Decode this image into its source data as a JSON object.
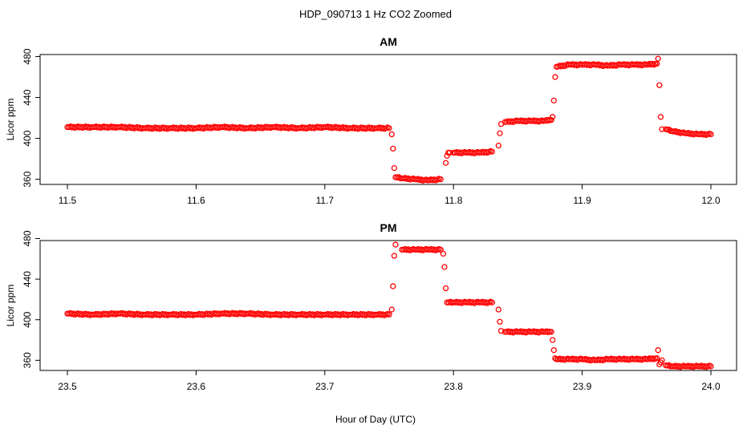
{
  "figure_title": "HDP_090713  1 Hz CO2 Zoomed",
  "xlabel": "Hour of Day (UTC)",
  "chart_data": [
    {
      "type": "scatter",
      "title": "AM",
      "xlabel": "",
      "ylabel": "Licor ppm",
      "xlim": [
        11.5,
        12.0
      ],
      "ylim": [
        355,
        482
      ],
      "xticks": [
        "11.5",
        "11.6",
        "11.7",
        "11.8",
        "11.9",
        "12.0"
      ],
      "yticks": [
        "360",
        "400",
        "440",
        "480"
      ],
      "grid": false,
      "color": "#ff0000",
      "marker": "open-circle",
      "series": [
        {
          "x": [
            11.5,
            11.52,
            11.54,
            11.56,
            11.58,
            11.6,
            11.62,
            11.64,
            11.66,
            11.68,
            11.7,
            11.72,
            11.74,
            11.75,
            11.752,
            11.753,
            11.754,
            11.755,
            11.76,
            11.77,
            11.78,
            11.79,
            11.794,
            11.795,
            11.796,
            11.797,
            11.8,
            11.81,
            11.82,
            11.83,
            11.835,
            11.836,
            11.837,
            11.84,
            11.85,
            11.86,
            11.87,
            11.876,
            11.877,
            11.878,
            11.879,
            11.88,
            11.89,
            11.9,
            11.91,
            11.92,
            11.93,
            11.94,
            11.95,
            11.958,
            11.959,
            11.96,
            11.961,
            11.962,
            11.965,
            11.97,
            11.98,
            11.99,
            12.0
          ],
          "y": [
            411,
            411,
            411,
            410,
            410,
            410,
            411,
            410,
            411,
            410,
            411,
            410,
            410,
            410,
            404,
            390,
            371,
            362,
            361,
            360,
            359,
            360,
            376,
            383,
            386,
            386,
            386,
            386,
            386,
            387,
            393,
            405,
            414,
            416,
            417,
            417,
            417,
            418,
            421,
            437,
            460,
            470,
            472,
            472,
            472,
            471,
            472,
            472,
            472,
            473,
            478,
            452,
            421,
            409,
            409,
            407,
            405,
            404,
            404
          ]
        }
      ]
    },
    {
      "type": "scatter",
      "title": "PM",
      "xlabel": "",
      "ylabel": "Licor ppm",
      "xlim": [
        23.5,
        24.0
      ],
      "ylim": [
        350,
        478
      ],
      "xticks": [
        "23.5",
        "23.6",
        "23.7",
        "23.8",
        "23.9",
        "24.0"
      ],
      "yticks": [
        "360",
        "400",
        "440",
        "480"
      ],
      "grid": false,
      "color": "#ff0000",
      "marker": "open-circle",
      "series": [
        {
          "x": [
            23.5,
            23.52,
            23.54,
            23.56,
            23.58,
            23.6,
            23.62,
            23.64,
            23.66,
            23.68,
            23.7,
            23.72,
            23.74,
            23.75,
            23.752,
            23.753,
            23.754,
            23.755,
            23.76,
            23.77,
            23.78,
            23.79,
            23.792,
            23.793,
            23.794,
            23.795,
            23.8,
            23.81,
            23.82,
            23.83,
            23.835,
            23.836,
            23.837,
            23.84,
            23.85,
            23.86,
            23.87,
            23.876,
            23.877,
            23.878,
            23.879,
            23.88,
            23.89,
            23.9,
            23.91,
            23.92,
            23.93,
            23.94,
            23.95,
            23.958,
            23.959,
            23.96,
            23.961,
            23.962,
            23.965,
            23.97,
            23.98,
            23.99,
            24.0
          ],
          "y": [
            406,
            405,
            406,
            405,
            405,
            405,
            406,
            406,
            405,
            405,
            405,
            405,
            405,
            405,
            410,
            433,
            463,
            474,
            469,
            469,
            469,
            469,
            465,
            452,
            431,
            417,
            417,
            417,
            417,
            417,
            410,
            398,
            389,
            388,
            388,
            388,
            388,
            388,
            380,
            370,
            362,
            361,
            361,
            361,
            360,
            361,
            361,
            361,
            361,
            362,
            370,
            356,
            358,
            360,
            355,
            354,
            354,
            354,
            354
          ]
        }
      ]
    }
  ]
}
